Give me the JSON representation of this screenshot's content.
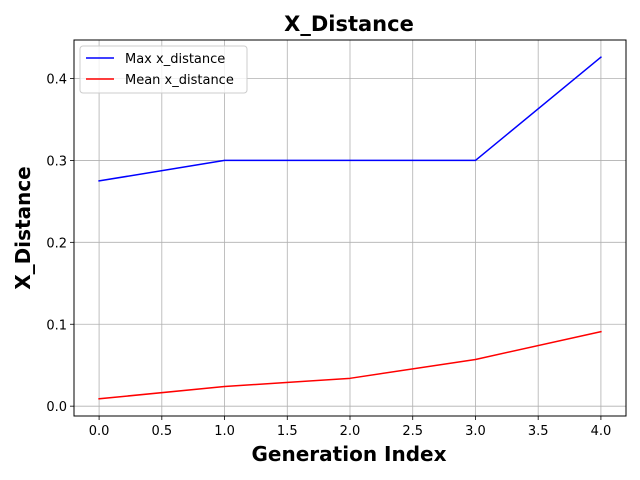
{
  "chart_data": {
    "type": "line",
    "title": "X_Distance",
    "xlabel": "Generation Index",
    "ylabel": "X_Distance",
    "x": [
      0,
      1,
      2,
      3,
      4
    ],
    "xlim": [
      -0.2,
      4.2
    ],
    "ylim": [
      -0.012,
      0.447
    ],
    "xticks": [
      "0.0",
      "0.5",
      "1.0",
      "1.5",
      "2.0",
      "2.5",
      "3.0",
      "3.5",
      "4.0"
    ],
    "yticks": [
      "0.0",
      "0.1",
      "0.2",
      "0.3",
      "0.4"
    ],
    "grid": true,
    "legend_position": "upper-left",
    "series": [
      {
        "name": "Max x_distance",
        "color": "#0000ff",
        "values": [
          0.275,
          0.3,
          0.3,
          0.3,
          0.426
        ]
      },
      {
        "name": "Mean x_distance",
        "color": "#ff0000",
        "values": [
          0.009,
          0.024,
          0.034,
          0.057,
          0.091
        ]
      }
    ]
  }
}
